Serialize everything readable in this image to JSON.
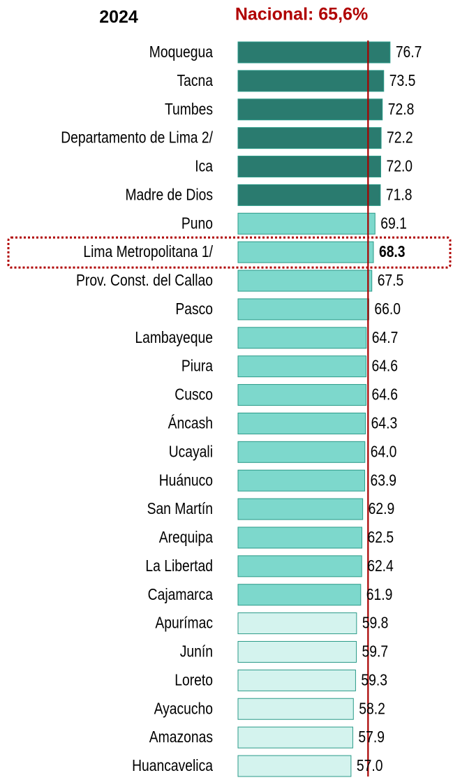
{
  "chart_data": {
    "type": "bar",
    "orientation": "horizontal",
    "title": "2024",
    "categories": [
      "Moquegua",
      "Tacna",
      "Tumbes",
      "Departamento de Lima 2/",
      "Ica",
      "Madre de Dios",
      "Puno",
      "Lima Metropolitana 1/",
      "Prov. Const. del Callao",
      "Pasco",
      "Lambayeque",
      "Piura",
      "Cusco",
      "Áncash",
      "Ucayali",
      "Huánuco",
      "San Martín",
      "Arequipa",
      "La Libertad",
      "Cajamarca",
      "Apurímac",
      "Junín",
      "Loreto",
      "Ayacucho",
      "Amazonas",
      "Huancavelica"
    ],
    "values": [
      76.7,
      73.5,
      72.8,
      72.2,
      72.0,
      71.8,
      69.1,
      68.3,
      67.5,
      66.0,
      64.7,
      64.6,
      64.6,
      64.3,
      64.0,
      63.9,
      62.9,
      62.5,
      62.4,
      61.9,
      59.8,
      59.7,
      59.3,
      58.2,
      57.9,
      57.0
    ],
    "value_labels": [
      "76.7",
      "73.5",
      "72.8",
      "72.2",
      "72.0",
      "71.8",
      "69.1",
      "68.3",
      "67.5",
      "66.0",
      "64.7",
      "64.6",
      "64.6",
      "64.3",
      "64.0",
      "63.9",
      "62.9",
      "62.5",
      "62.4",
      "61.9",
      "59.8",
      "59.7",
      "59.3",
      "58.2",
      "57.9",
      "57.0"
    ],
    "colors": [
      "#2a7b6f",
      "#2a7b6f",
      "#2a7b6f",
      "#2a7b6f",
      "#2a7b6f",
      "#2a7b6f",
      "#7dd8cc",
      "#7dd8cc",
      "#7dd8cc",
      "#7dd8cc",
      "#7dd8cc",
      "#7dd8cc",
      "#7dd8cc",
      "#7dd8cc",
      "#7dd8cc",
      "#7dd8cc",
      "#7dd8cc",
      "#7dd8cc",
      "#7dd8cc",
      "#7dd8cc",
      "#d4f3ee",
      "#d4f3ee",
      "#d4f3ee",
      "#d4f3ee",
      "#d4f3ee",
      "#d4f3ee"
    ],
    "xlim": [
      0,
      100
    ],
    "highlight_index": 7,
    "reference_line": {
      "value": 65.6,
      "label": "Nacional: 65,6%",
      "color": "#a80000"
    }
  }
}
